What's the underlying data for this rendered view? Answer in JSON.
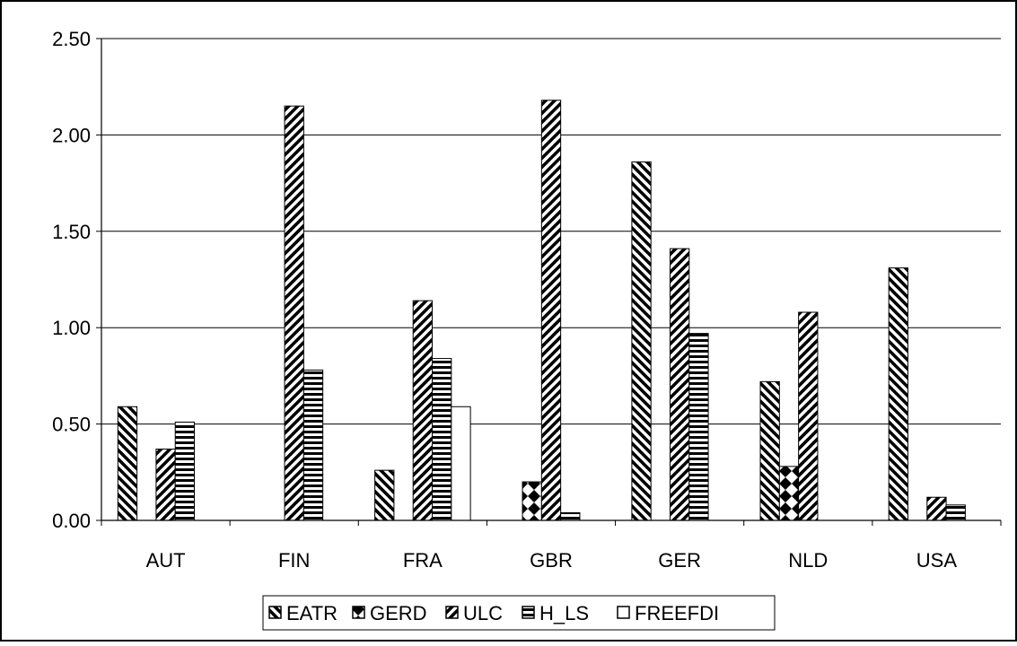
{
  "chart_data": {
    "type": "bar",
    "title": "",
    "xlabel": "",
    "ylabel": "",
    "categories": [
      "AUT",
      "FIN",
      "FRA",
      "GBR",
      "GER",
      "NLD",
      "USA"
    ],
    "ylim": [
      0,
      2.5
    ],
    "yticks": [
      "0.00",
      "0.50",
      "1.00",
      "1.50",
      "2.00",
      "2.50"
    ],
    "grid": true,
    "legend_position": "bottom",
    "series": [
      {
        "name": "EATR",
        "pattern": "diagonal-down",
        "values": [
          0.59,
          0,
          0.26,
          0,
          1.86,
          0.72,
          1.31
        ]
      },
      {
        "name": "GERD",
        "pattern": "diamonds",
        "values": [
          0,
          0,
          0,
          0.2,
          0,
          0.28,
          0
        ]
      },
      {
        "name": "ULC",
        "pattern": "diagonal-up",
        "values": [
          0.37,
          2.15,
          1.14,
          2.18,
          1.41,
          1.08,
          0.12
        ]
      },
      {
        "name": "H_LS",
        "pattern": "horizontal",
        "values": [
          0.51,
          0.78,
          0.84,
          0.04,
          0.97,
          0,
          0.08
        ]
      },
      {
        "name": "FREEFDI",
        "pattern": "solid-white",
        "values": [
          0,
          0,
          0.59,
          0,
          0,
          0,
          0
        ]
      }
    ]
  }
}
